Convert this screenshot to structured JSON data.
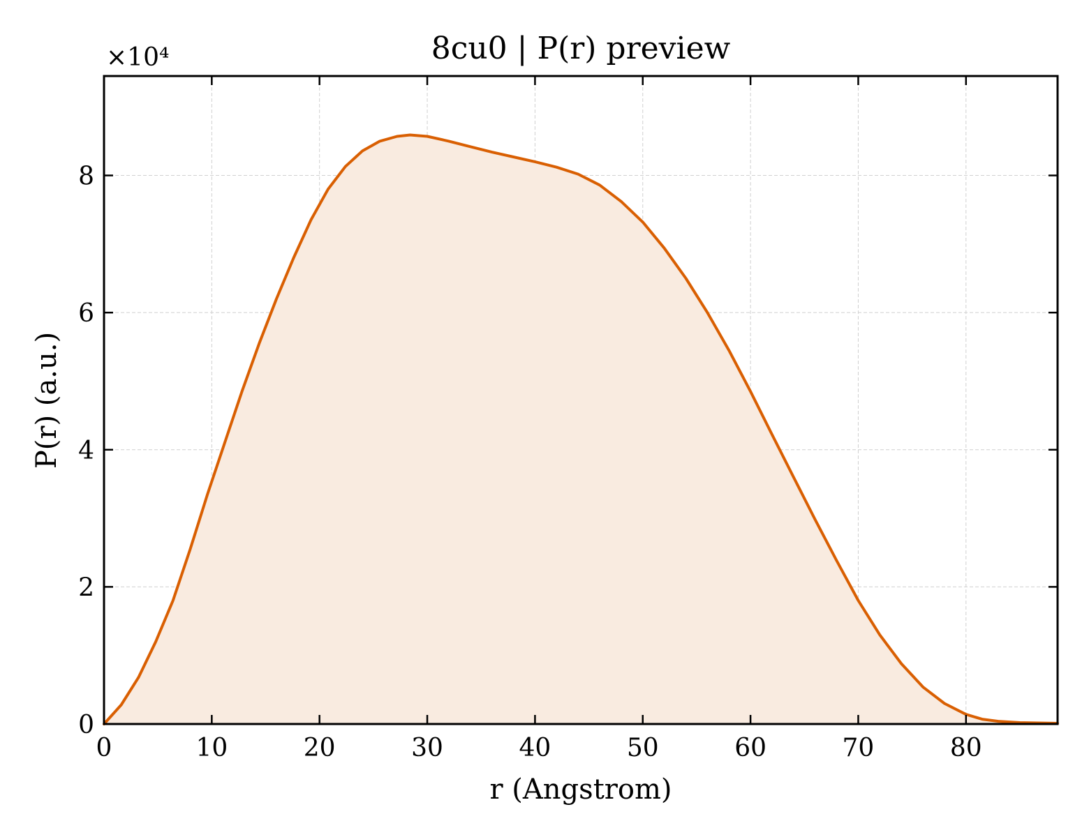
{
  "chart_data": {
    "type": "area",
    "title": "8cu0 | P(r) preview",
    "xlabel": "r (Angstrom)",
    "ylabel": "P(r) (a.u.)",
    "y_multiplier": "×10⁴",
    "xlim": [
      0,
      88.5
    ],
    "ylim": [
      0,
      9.45
    ],
    "y_scale_factor": 10000,
    "xticks": [
      0,
      10,
      20,
      30,
      40,
      50,
      60,
      70,
      80
    ],
    "yticks": [
      0,
      2,
      4,
      6,
      8
    ],
    "grid": true,
    "legend": "none",
    "line_color": "#d95f02",
    "fill_color": "#f9ebe0",
    "series": [
      {
        "x": [
          0,
          1.6,
          3.2,
          4.8,
          6.4,
          8.0,
          9.6,
          11.2,
          12.8,
          14.4,
          16.0,
          17.6,
          19.2,
          20.8,
          22.4,
          24.0,
          25.6,
          27.2,
          28.4,
          30.0,
          32.0,
          34.0,
          36.0,
          38.0,
          40.0,
          42.0,
          44.0,
          46.0,
          48.0,
          50.0,
          52.0,
          54.0,
          56.0,
          58.0,
          60.0,
          62.0,
          64.0,
          66.0,
          68.0,
          70.0,
          72.0,
          74.0,
          76.0,
          78.0,
          80.0,
          81.5,
          83.0,
          85.0,
          88.5
        ],
        "y": [
          0,
          0.28,
          0.68,
          1.2,
          1.8,
          2.55,
          3.35,
          4.1,
          4.85,
          5.55,
          6.2,
          6.8,
          7.35,
          7.8,
          8.13,
          8.36,
          8.5,
          8.57,
          8.59,
          8.57,
          8.5,
          8.42,
          8.34,
          8.27,
          8.2,
          8.12,
          8.02,
          7.86,
          7.62,
          7.32,
          6.94,
          6.5,
          6.0,
          5.45,
          4.85,
          4.22,
          3.6,
          2.98,
          2.38,
          1.8,
          1.3,
          0.88,
          0.54,
          0.3,
          0.14,
          0.07,
          0.04,
          0.02,
          0.01
        ]
      }
    ]
  }
}
